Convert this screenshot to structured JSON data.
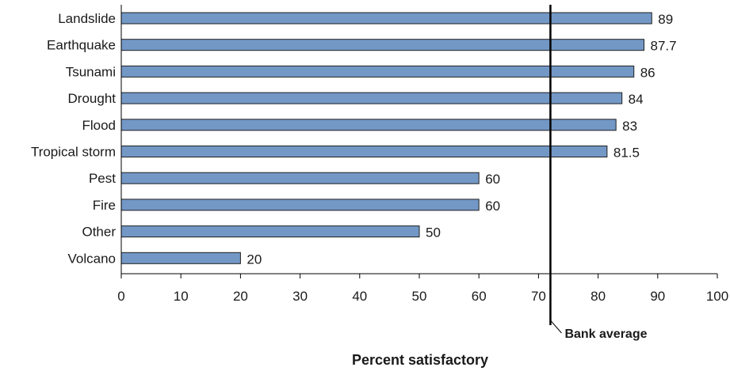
{
  "chart_data": {
    "type": "bar",
    "orientation": "horizontal",
    "categories": [
      "Landslide",
      "Earthquake",
      "Tsunami",
      "Drought",
      "Flood",
      "Tropical storm",
      "Pest",
      "Fire",
      "Other",
      "Volcano"
    ],
    "values": [
      89,
      87.7,
      86,
      84,
      83,
      81.5,
      60,
      60,
      50,
      20
    ],
    "value_labels": [
      "89",
      "87.7",
      "86",
      "84",
      "83",
      "81.5",
      "60",
      "60",
      "50",
      "20"
    ],
    "xlabel": "Percent satisfactory",
    "xlim": [
      0,
      100
    ],
    "xticks": [
      0,
      10,
      20,
      30,
      40,
      50,
      60,
      70,
      80,
      90,
      100
    ],
    "reference_line": {
      "label": "Bank average",
      "value": 72
    },
    "bar_color": "#7398c6",
    "grid": false,
    "legend": "none"
  }
}
